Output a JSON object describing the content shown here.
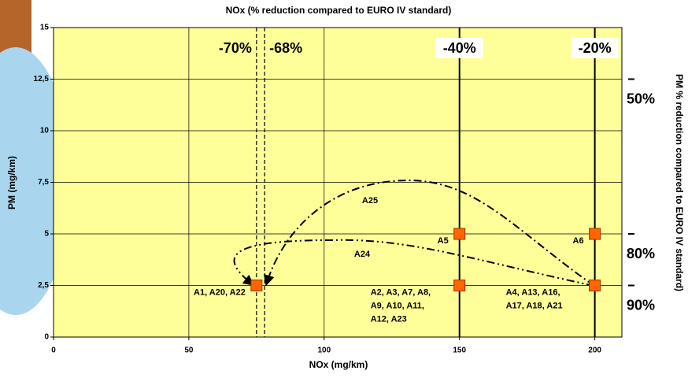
{
  "chart_data": {
    "type": "scatter",
    "title": "NOx (% reduction compared to EURO IV standard)",
    "x_label": "NOx (mg/km)",
    "y_label": "PM (mg/km)",
    "y2_label": "PM % reduction compared to EURO IV standard)",
    "xlim": [
      0,
      210
    ],
    "ylim": [
      0,
      15
    ],
    "xticks": [
      0,
      50,
      100,
      150,
      200
    ],
    "yticks": [
      0,
      {
        "value": 2.5,
        "label": "2,5"
      },
      5,
      {
        "value": 7.5,
        "label": "7,5"
      },
      10,
      {
        "value": 12.5,
        "label": "12,5"
      },
      15
    ],
    "grid": true,
    "color": "#ff6600",
    "x": [
      75,
      150,
      150,
      200,
      200
    ],
    "values": [
      2.5,
      5,
      2.5,
      5,
      2.5
    ],
    "point_labels": [
      [
        "A1, A20, A22"
      ],
      [
        "A5"
      ],
      [
        "A2, A3, A7, A8,",
        "A9, A10, A11,",
        "A12, A23"
      ],
      [
        "A6"
      ],
      [
        "A4, A13, A16,",
        "A17, A18, A21"
      ]
    ],
    "top_markers": [
      {
        "x": 75,
        "label": "-70%",
        "style": "dashed"
      },
      {
        "x": 78,
        "label": "-68%",
        "style": "dashed"
      },
      {
        "x": 150,
        "label": "-40%",
        "style": "solid"
      },
      {
        "x": 200,
        "label": "-20%",
        "style": "solid"
      }
    ],
    "right_markers": [
      {
        "y": 12.5,
        "label": "50%"
      },
      {
        "y": 5,
        "label": "80%"
      },
      {
        "y": 2.5,
        "label": "90%"
      }
    ],
    "annotations": [
      "A25",
      "A24"
    ]
  }
}
